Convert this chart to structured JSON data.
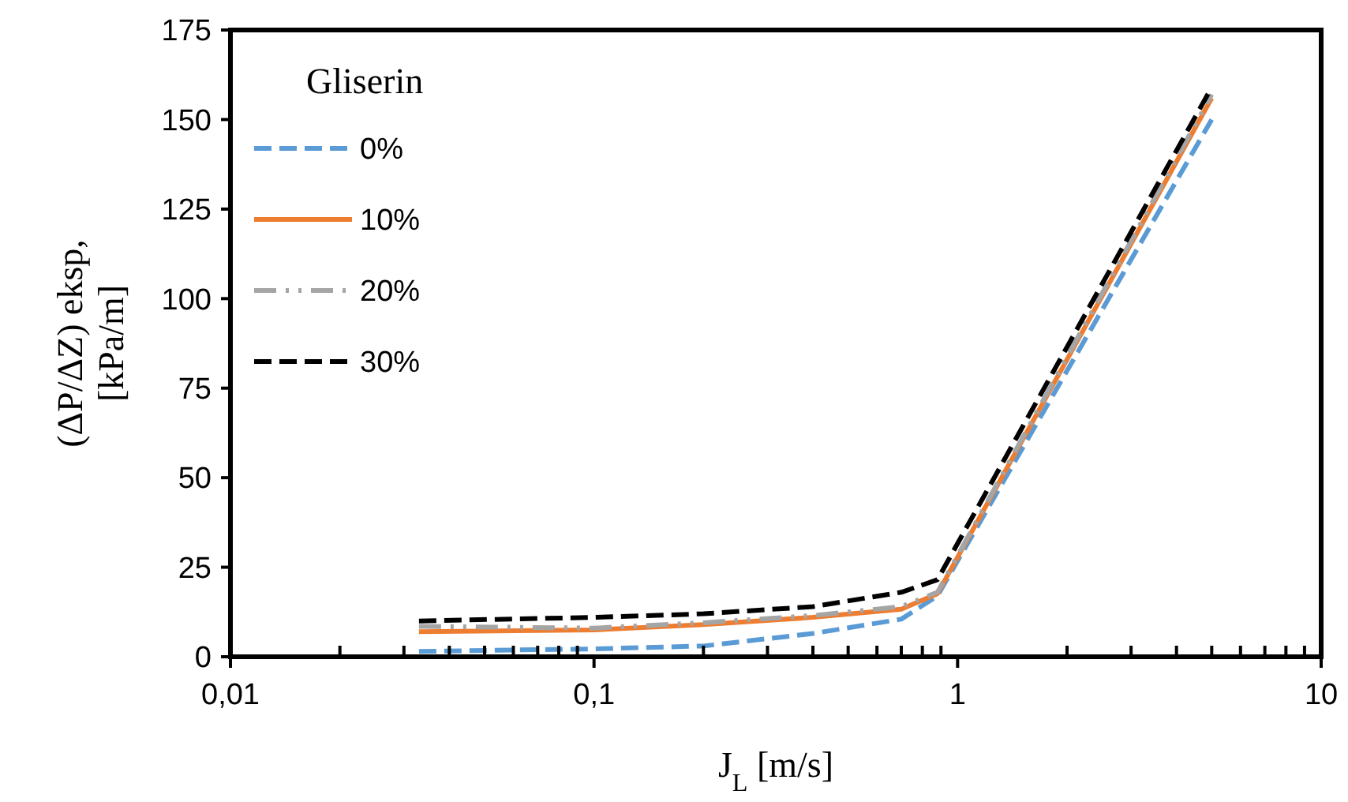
{
  "chart_data": {
    "type": "line",
    "xlabel": "J$_{L}$ [m/s]",
    "ylabel": "(ΔP/ΔZ) eksp,\n[kPa/m]",
    "legend_title": "Gliserin",
    "legend": "top left",
    "log": "x",
    "grid": false,
    "xlim": [
      0.01,
      10
    ],
    "ylim": [
      0,
      175
    ],
    "xticks": [
      {
        "value": 0.01,
        "label": "0,01"
      },
      {
        "value": 0.02,
        "label": null
      },
      {
        "value": 0.03,
        "label": null
      },
      {
        "value": 0.04,
        "label": null
      },
      {
        "value": 0.05,
        "label": null
      },
      {
        "value": 0.06,
        "label": null
      },
      {
        "value": 0.07,
        "label": null
      },
      {
        "value": 0.08,
        "label": null
      },
      {
        "value": 0.09,
        "label": null
      },
      {
        "value": 0.1,
        "label": "0,1"
      },
      {
        "value": 0.2,
        "label": null
      },
      {
        "value": 0.3,
        "label": null
      },
      {
        "value": 0.4,
        "label": null
      },
      {
        "value": 0.5,
        "label": null
      },
      {
        "value": 0.6,
        "label": null
      },
      {
        "value": 0.7,
        "label": null
      },
      {
        "value": 0.8,
        "label": null
      },
      {
        "value": 0.9,
        "label": null
      },
      {
        "value": 1,
        "label": "1"
      },
      {
        "value": 2,
        "label": null
      },
      {
        "value": 3,
        "label": null
      },
      {
        "value": 4,
        "label": null
      },
      {
        "value": 5,
        "label": null
      },
      {
        "value": 6,
        "label": null
      },
      {
        "value": 7,
        "label": null
      },
      {
        "value": 8,
        "label": null
      },
      {
        "value": 9,
        "label": null
      },
      {
        "value": 10,
        "label": "10"
      }
    ],
    "yticks": [
      0,
      25,
      50,
      75,
      100,
      125,
      150,
      175
    ],
    "x": [
      0.033,
      0.1,
      0.2,
      0.4,
      0.7,
      0.88,
      5
    ],
    "series": [
      {
        "name": "0%",
        "color": "#5b9bd5",
        "line_style": "dashed",
        "values": [
          1.5,
          2.2,
          3,
          6.5,
          10.5,
          17,
          150
        ]
      },
      {
        "name": "10%",
        "color": "#ed7d31",
        "line_style": "solid",
        "values": [
          7,
          7.5,
          9,
          11,
          13.3,
          17.6,
          156
        ]
      },
      {
        "name": "20%",
        "color": "#a5a5a5",
        "line_style": "dotted",
        "values": [
          8.5,
          8,
          9.5,
          11.5,
          14,
          18,
          157
        ]
      },
      {
        "name": "30%",
        "color": "#000000",
        "line_style": "dashed",
        "values": [
          10,
          11,
          12,
          14,
          18,
          21.5,
          159
        ]
      }
    ]
  }
}
